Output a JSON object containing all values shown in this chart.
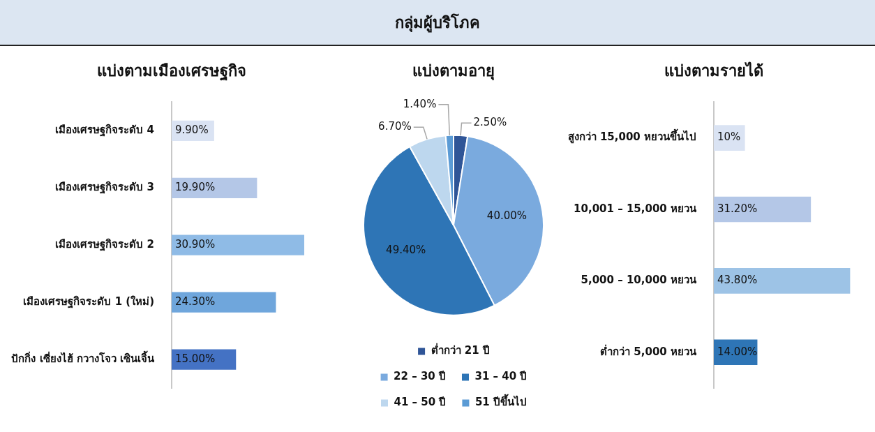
{
  "chart_data": [
    {
      "type": "other",
      "title": "กลุ่มผู้บริโภค"
    },
    {
      "type": "bar",
      "orientation": "horizontal",
      "title": "แบ่งตามเมืองเศรษฐกิจ",
      "categories": [
        "เมืองเศรษฐกิจระดับ 4",
        "เมืองเศรษฐกิจระดับ 3",
        "เมืองเศรษฐกิจระดับ 2",
        "เมืองเศรษฐกิจระดับ 1 (ใหม่)",
        "ปักกิ่ง เซี่ยงไฮ้ กวางโจว เซินเจิ้น"
      ],
      "values": [
        9.9,
        19.9,
        30.9,
        24.3,
        15.0
      ],
      "colors": [
        "#dae3f3",
        "#b4c7e7",
        "#8fbbe6",
        "#6fa6dc",
        "#4472c4"
      ],
      "value_labels": [
        "9.90%",
        "19.90%",
        "30.90%",
        "24.30%",
        "15.00%"
      ]
    },
    {
      "type": "pie",
      "title": "แบ่งตามอายุ",
      "categories": [
        "ต่ำกว่า 21 ปี",
        "22 – 30 ปี",
        "31 – 40 ปี",
        "41 – 50 ปี",
        "51 ปีขึ้นไป"
      ],
      "values": [
        2.5,
        40.0,
        49.4,
        6.7,
        1.4
      ],
      "colors": [
        "#2f5597",
        "#7aaade",
        "#2e75b6",
        "#bdd7ee",
        "#5b9bd5"
      ],
      "value_labels": [
        "2.50%",
        "40.00%",
        "49.40%",
        "6.70%",
        "1.40%"
      ],
      "legend": "bottom"
    },
    {
      "type": "bar",
      "orientation": "horizontal",
      "title": "แบ่งตามรายได้",
      "categories": [
        "สูงกว่า 15,000 หยวนขึ้นไป",
        "10,001 – 15,000 หยวน",
        "5,000 – 10,000 หยวน",
        "ต่ำกว่า 5,000 หยวน"
      ],
      "values": [
        10,
        31.2,
        43.8,
        14.0
      ],
      "colors": [
        "#dae3f3",
        "#b4c7e7",
        "#9dc3e6",
        "#2e75b6"
      ],
      "value_labels": [
        "10%",
        "31.20%",
        "43.80%",
        "14.00%"
      ]
    }
  ]
}
